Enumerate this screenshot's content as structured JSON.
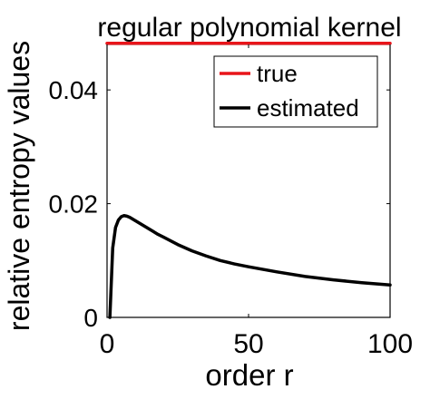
{
  "chart_data": {
    "type": "line",
    "title": "regular polynomial kernel",
    "xlabel": "order r",
    "ylabel": "relative entropy values",
    "xlim": [
      0,
      100
    ],
    "ylim": [
      0,
      0.048
    ],
    "xticks": [
      0,
      50,
      100
    ],
    "xtick_labels": [
      "0",
      "50",
      "100"
    ],
    "yticks": [
      0,
      0.02,
      0.04
    ],
    "ytick_labels": [
      "0",
      "0.02",
      "0.04"
    ],
    "grid": false,
    "legend_position": "top-right",
    "series": [
      {
        "name": "true",
        "color": "#e8151a",
        "x": [
          0,
          100
        ],
        "y": [
          0.0482,
          0.0482
        ]
      },
      {
        "name": "estimated",
        "color": "#000000",
        "x": [
          1,
          2,
          3,
          4,
          5,
          6,
          7,
          8,
          9,
          10,
          12,
          14,
          16,
          18,
          20,
          25,
          30,
          35,
          40,
          45,
          50,
          60,
          70,
          80,
          90,
          100
        ],
        "y": [
          0.0,
          0.0122,
          0.0158,
          0.0171,
          0.0177,
          0.0179,
          0.0178,
          0.0176,
          0.0173,
          0.017,
          0.0164,
          0.0158,
          0.0152,
          0.0146,
          0.0141,
          0.0128,
          0.0117,
          0.0108,
          0.01,
          0.0094,
          0.0089,
          0.008,
          0.0072,
          0.0066,
          0.0061,
          0.0057
        ]
      }
    ]
  }
}
